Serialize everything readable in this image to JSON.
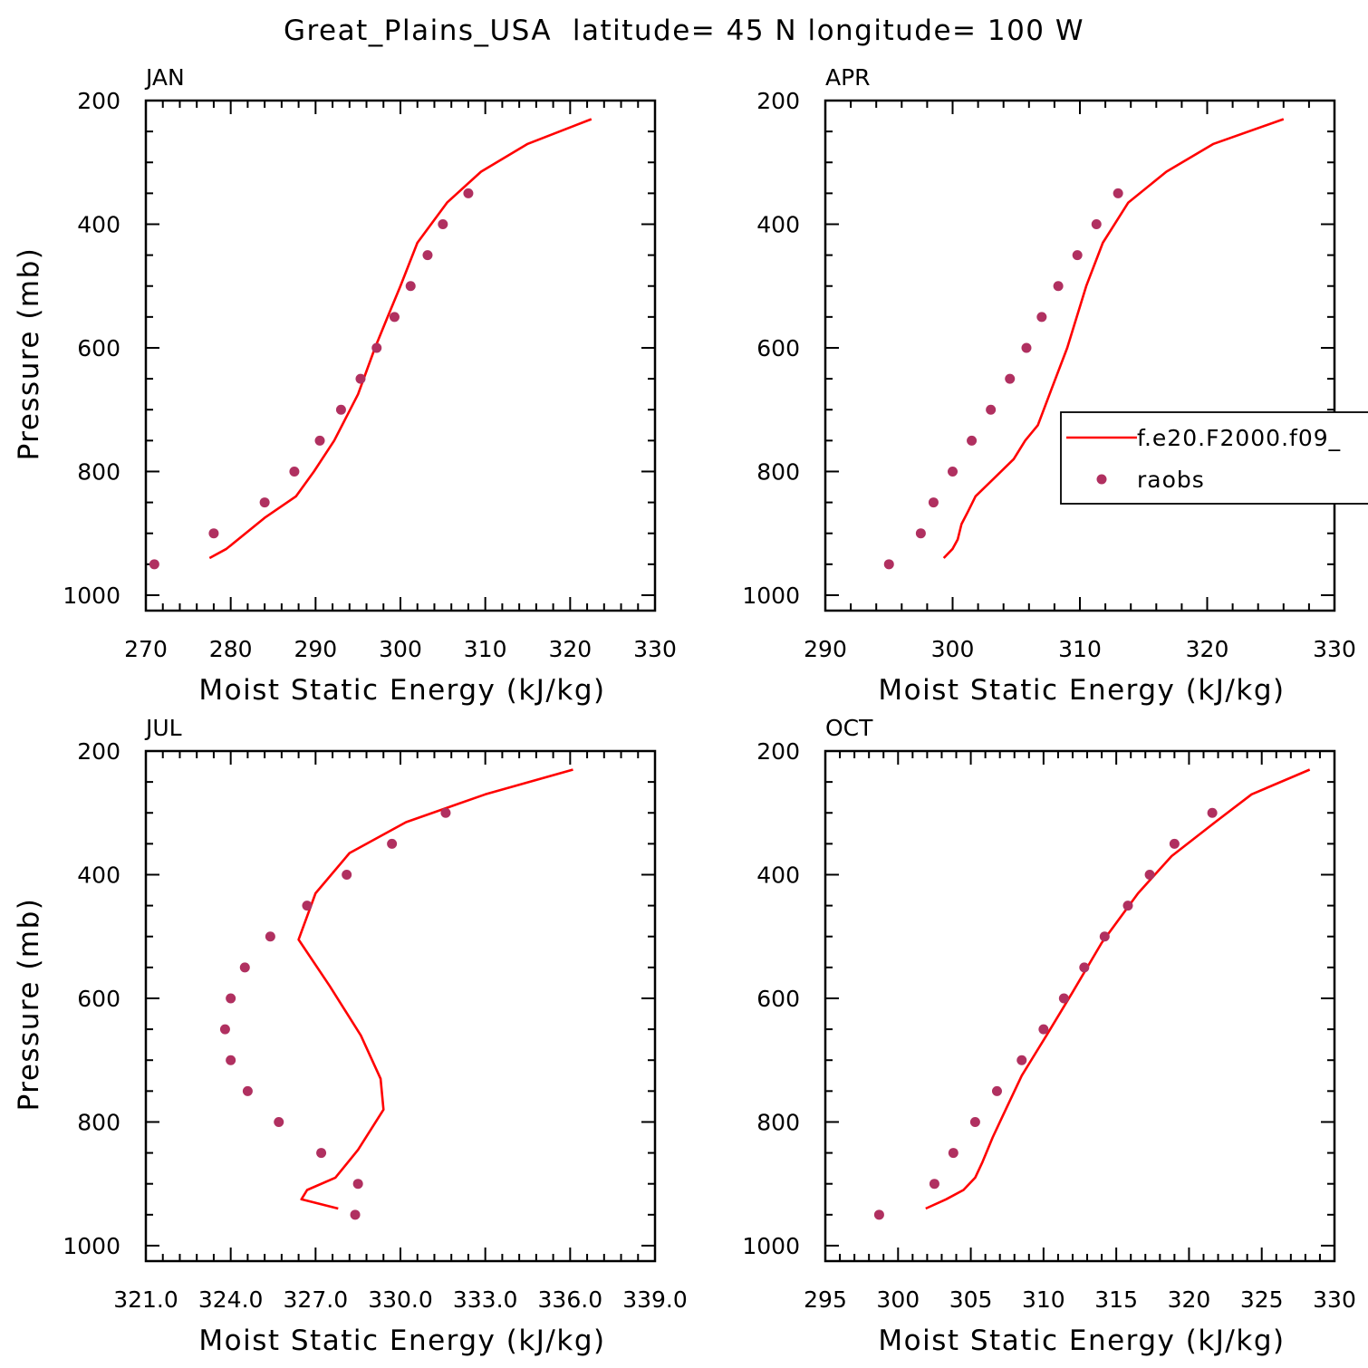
{
  "figure": {
    "title": "Great_Plains_USA  latitude= 45 N longitude= 100 W"
  },
  "colors": {
    "model": "#ff0000",
    "obs": "#b03060",
    "axes": "#000000"
  },
  "legend": {
    "panel": 1,
    "placement": "right, overlapping APR panel",
    "entries": [
      {
        "label": "f.e20.F2000.f09_",
        "type": "line"
      },
      {
        "label": "raobs",
        "type": "marker"
      }
    ]
  },
  "chart_data": [
    {
      "type": "line",
      "label": "JAN",
      "xlabel": "Moist Static Energy (kJ/kg)",
      "ylabel": "Pressure (mb)",
      "xlim": [
        270,
        330
      ],
      "ylim": [
        1025,
        200
      ],
      "y_inverted": true,
      "xticks": [
        270,
        280,
        290,
        300,
        310,
        320,
        330
      ],
      "xtick_labels": [
        "270",
        "280",
        "290",
        "300",
        "310",
        "320",
        "330"
      ],
      "yticks": [
        200,
        400,
        600,
        800,
        1000
      ],
      "ytick_labels": [
        "200",
        "400",
        "600",
        "800",
        "1000"
      ],
      "series": [
        {
          "name": "f.e20.F2000.f09_",
          "kind": "line",
          "x": [
            277.5,
            279.5,
            284.0,
            287.7,
            289.8,
            292.2,
            295.0,
            297.0,
            298.5,
            300.0,
            302.0,
            305.5,
            309.5,
            315.0,
            322.5
          ],
          "y": [
            940,
            925,
            875,
            840,
            800,
            750,
            675,
            600,
            550,
            500,
            430,
            365,
            315,
            270,
            230
          ]
        },
        {
          "name": "raobs",
          "kind": "scatter",
          "x": [
            271.0,
            278.0,
            284.0,
            287.5,
            290.5,
            293.0,
            295.3,
            297.2,
            299.3,
            301.2,
            303.2,
            305.0,
            308.0
          ],
          "y": [
            950,
            900,
            850,
            800,
            750,
            700,
            650,
            600,
            550,
            500,
            450,
            400,
            350
          ]
        }
      ]
    },
    {
      "type": "line",
      "label": "APR",
      "xlabel": "Moist Static Energy (kJ/kg)",
      "ylabel": "",
      "xlim": [
        290,
        330
      ],
      "ylim": [
        1025,
        200
      ],
      "y_inverted": true,
      "xticks": [
        290,
        300,
        310,
        320,
        330
      ],
      "xtick_labels": [
        "290",
        "300",
        "310",
        "320",
        "330"
      ],
      "yticks": [
        200,
        400,
        600,
        800,
        1000
      ],
      "ytick_labels": [
        "200",
        "400",
        "600",
        "800",
        "1000"
      ],
      "series": [
        {
          "name": "f.e20.F2000.f09_",
          "kind": "line",
          "x": [
            299.3,
            300.0,
            300.4,
            300.7,
            301.2,
            301.8,
            303.3,
            304.8,
            305.7,
            306.7,
            307.8,
            309.0,
            310.5,
            311.8,
            313.8,
            316.8,
            320.5,
            326.0
          ],
          "y": [
            940,
            925,
            910,
            885,
            865,
            840,
            810,
            780,
            750,
            725,
            665,
            600,
            500,
            430,
            365,
            315,
            270,
            230
          ]
        },
        {
          "name": "raobs",
          "kind": "scatter",
          "x": [
            295.0,
            297.5,
            298.5,
            300.0,
            301.5,
            303.0,
            304.5,
            305.8,
            307.0,
            308.3,
            309.8,
            311.3,
            313.0
          ],
          "y": [
            950,
            900,
            850,
            800,
            750,
            700,
            650,
            600,
            550,
            500,
            450,
            400,
            350
          ]
        }
      ]
    },
    {
      "type": "line",
      "label": "JUL",
      "xlabel": "Moist Static Energy (kJ/kg)",
      "ylabel": "Pressure (mb)",
      "xlim": [
        321,
        339
      ],
      "ylim": [
        1025,
        200
      ],
      "y_inverted": true,
      "xticks": [
        321,
        324,
        327,
        330,
        333,
        336,
        339
      ],
      "xtick_labels": [
        "321.0",
        "324.0",
        "327.0",
        "330.0",
        "333.0",
        "336.0",
        "339.0"
      ],
      "yticks": [
        200,
        400,
        600,
        800,
        1000
      ],
      "ytick_labels": [
        "200",
        "400",
        "600",
        "800",
        "1000"
      ],
      "series": [
        {
          "name": "f.e20.F2000.f09_",
          "kind": "line",
          "x": [
            327.8,
            326.5,
            326.7,
            327.7,
            328.5,
            329.4,
            329.3,
            328.6,
            327.5,
            326.4,
            327.0,
            328.2,
            330.2,
            333.0,
            336.1
          ],
          "y": [
            940,
            925,
            910,
            890,
            845,
            780,
            730,
            660,
            580,
            505,
            430,
            365,
            315,
            270,
            230
          ]
        },
        {
          "name": "raobs",
          "kind": "scatter",
          "x": [
            328.4,
            328.5,
            327.2,
            325.7,
            324.6,
            324.0,
            323.8,
            324.0,
            324.5,
            325.4,
            326.7,
            328.1,
            329.7,
            331.6
          ],
          "y": [
            950,
            900,
            850,
            800,
            750,
            700,
            650,
            600,
            550,
            500,
            450,
            400,
            350,
            300
          ]
        }
      ]
    },
    {
      "type": "line",
      "label": "OCT",
      "xlabel": "Moist Static Energy (kJ/kg)",
      "ylabel": "",
      "xlim": [
        295,
        330
      ],
      "ylim": [
        1025,
        200
      ],
      "y_inverted": true,
      "xticks": [
        295,
        300,
        305,
        310,
        315,
        320,
        325,
        330
      ],
      "xtick_labels": [
        "295",
        "300",
        "305",
        "310",
        "315",
        "320",
        "325",
        "330"
      ],
      "yticks": [
        200,
        400,
        600,
        800,
        1000
      ],
      "ytick_labels": [
        "200",
        "400",
        "600",
        "800",
        "1000"
      ],
      "series": [
        {
          "name": "f.e20.F2000.f09_",
          "kind": "line",
          "x": [
            301.9,
            303.3,
            304.5,
            305.3,
            305.8,
            306.5,
            307.2,
            308.5,
            310.2,
            312.0,
            314.0,
            316.5,
            318.8,
            321.8,
            324.3,
            328.3
          ],
          "y": [
            940,
            925,
            910,
            890,
            865,
            825,
            790,
            725,
            660,
            590,
            510,
            430,
            370,
            315,
            270,
            230
          ]
        },
        {
          "name": "raobs",
          "kind": "scatter",
          "x": [
            298.7,
            302.5,
            303.8,
            305.3,
            306.8,
            308.5,
            310.0,
            311.4,
            312.8,
            314.2,
            315.8,
            317.3,
            319.0,
            321.6
          ],
          "y": [
            950,
            900,
            850,
            800,
            750,
            700,
            650,
            600,
            550,
            500,
            450,
            400,
            350,
            300
          ]
        }
      ]
    }
  ]
}
